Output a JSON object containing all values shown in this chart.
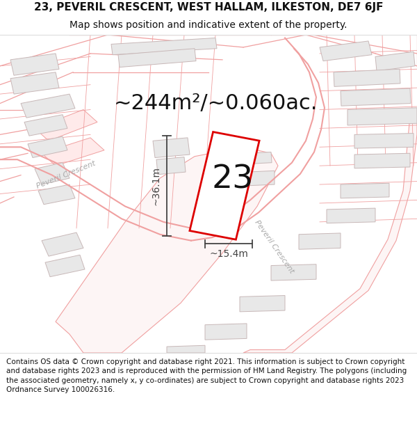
{
  "title_line1": "23, PEVERIL CRESCENT, WEST HALLAM, ILKESTON, DE7 6JF",
  "title_line2": "Map shows position and indicative extent of the property.",
  "area_text": "~244m²/~0.060ac.",
  "property_number": "23",
  "dim_width": "~15.4m",
  "dim_height": "~36.1m",
  "footer_text": "Contains OS data © Crown copyright and database right 2021. This information is subject to Crown copyright and database rights 2023 and is reproduced with the permission of HM Land Registry. The polygons (including the associated geometry, namely x, y co-ordinates) are subject to Crown copyright and database rights 2023 Ordnance Survey 100026316.",
  "bg_color": "#ffffff",
  "map_bg": "#ffffff",
  "road_line_color": "#f0a0a0",
  "building_fill": "#e8e8e8",
  "building_edge": "#c8b8b8",
  "plot_color": "#dd0000",
  "text_color": "#111111",
  "dim_color": "#444444",
  "street_color": "#aaaaaa",
  "title_fontsize": 11,
  "subtitle_fontsize": 10,
  "footer_fontsize": 7.5,
  "area_fontsize": 22,
  "number_fontsize": 34,
  "dim_fontsize": 10,
  "street_label1": "Peveril Crescent",
  "street_label2": "Peveril Crescent",
  "header_bg": "#ffffff",
  "footer_bg": "#ffffff"
}
